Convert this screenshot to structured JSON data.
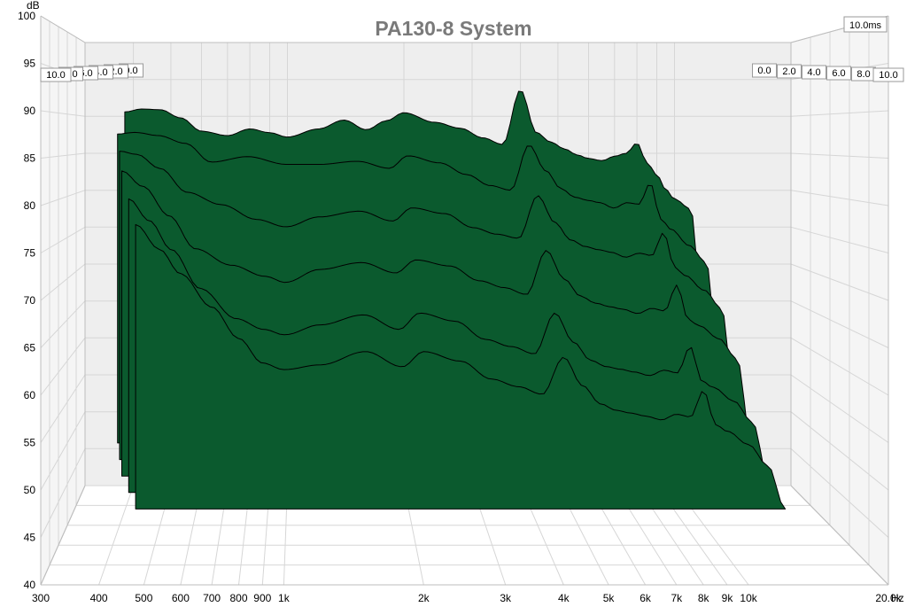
{
  "chart_data": {
    "type": "area",
    "title": "PA130-8 System",
    "xlabel": "Hz",
    "ylabel": "dB",
    "x_scale": "log",
    "xlim": [
      300,
      20000
    ],
    "ylim": [
      40,
      100
    ],
    "x_ticks": [
      {
        "value": 300,
        "label": "300"
      },
      {
        "value": 400,
        "label": "400"
      },
      {
        "value": 500,
        "label": "500"
      },
      {
        "value": 600,
        "label": "600"
      },
      {
        "value": 700,
        "label": "700"
      },
      {
        "value": 800,
        "label": "800"
      },
      {
        "value": 900,
        "label": "900"
      },
      {
        "value": 1000,
        "label": "1k"
      },
      {
        "value": 2000,
        "label": "2k"
      },
      {
        "value": 3000,
        "label": "3k"
      },
      {
        "value": 4000,
        "label": "4k"
      },
      {
        "value": 5000,
        "label": "5k"
      },
      {
        "value": 6000,
        "label": "6k"
      },
      {
        "value": 7000,
        "label": "7k"
      },
      {
        "value": 8000,
        "label": "8k"
      },
      {
        "value": 9000,
        "label": "9k"
      },
      {
        "value": 10000,
        "label": "10k"
      },
      {
        "value": 20000,
        "label": "20.0k"
      }
    ],
    "y_ticks": [
      40,
      45,
      50,
      55,
      60,
      65,
      70,
      75,
      80,
      85,
      90,
      95,
      100
    ],
    "time_axis_label": "10.0ms",
    "time_ticks": [
      "0.0",
      "2.0",
      "4.0",
      "6.0",
      "8.0",
      "10.0"
    ],
    "grid": true,
    "fill_color": "#0b5a2e",
    "line_color": "#000000",
    "series": [
      {
        "name": "0.0",
        "x": [
          380,
          420,
          470,
          530,
          600,
          700,
          800,
          900,
          1000,
          1200,
          1400,
          1600,
          1800,
          2000,
          2400,
          2800,
          3200,
          3600,
          4000,
          4400,
          4800,
          5200,
          5600,
          6000,
          6500,
          7000,
          7500,
          8000,
          8500,
          9000,
          9500,
          10000,
          11000,
          12000
        ],
        "y": [
          90.6,
          91.0,
          90.9,
          89.8,
          88.0,
          87.4,
          88.3,
          87.8,
          87.2,
          88.3,
          89.5,
          88.2,
          89.4,
          90.5,
          89.2,
          88.4,
          87.1,
          86.2,
          93.6,
          87.8,
          86.5,
          85.6,
          84.8,
          84.3,
          84.0,
          84.6,
          85.0,
          86.4,
          83.7,
          82.1,
          80.1,
          78.8,
          77.5,
          59.0
        ]
      },
      {
        "name": "2.0",
        "x": [
          380,
          420,
          480,
          560,
          650,
          800,
          1000,
          1200,
          1500,
          1800,
          2000,
          2400,
          2800,
          3200,
          3600,
          4000,
          4400,
          4800,
          5200,
          5600,
          6000,
          6500,
          7000,
          7500,
          8000,
          8500,
          9000,
          10000,
          11000,
          12000
        ],
        "y": [
          87.6,
          87.8,
          87.4,
          86.4,
          84.0,
          84.7,
          83.7,
          83.7,
          84.1,
          83.2,
          84.8,
          83.9,
          82.4,
          81.0,
          80.4,
          86.2,
          82.9,
          80.6,
          79.5,
          79.1,
          78.8,
          78.1,
          78.8,
          78.6,
          81.3,
          76.7,
          75.4,
          73.3,
          71.2,
          55.0
        ]
      },
      {
        "name": "4.0",
        "x": [
          400,
          440,
          500,
          580,
          700,
          850,
          1000,
          1200,
          1500,
          1800,
          2000,
          2400,
          2800,
          3200,
          3600,
          4000,
          4400,
          4800,
          5200,
          5600,
          6000,
          6500,
          7000,
          7500,
          8000,
          8500,
          9000,
          10000,
          11000,
          12000
        ],
        "y": [
          85.5,
          85.1,
          83.4,
          80.5,
          79.0,
          77.2,
          76.3,
          77.5,
          78.2,
          77.0,
          78.6,
          77.9,
          76.2,
          75.4,
          74.9,
          80.1,
          76.8,
          74.7,
          73.9,
          73.5,
          73.2,
          72.6,
          73.1,
          72.8,
          75.6,
          71.4,
          70.4,
          68.6,
          66.4,
          52.0
        ]
      },
      {
        "name": "6.0",
        "x": [
          420,
          470,
          540,
          620,
          750,
          900,
          1000,
          1200,
          1500,
          1800,
          2000,
          2400,
          2800,
          3200,
          3600,
          4000,
          4400,
          4800,
          5200,
          5600,
          6000,
          6500,
          7000,
          7500,
          8000,
          8500,
          9000,
          10000,
          11000,
          12000
        ],
        "y": [
          83.3,
          81.5,
          78.1,
          74.3,
          72.4,
          71.1,
          70.4,
          71.9,
          72.7,
          71.5,
          73.0,
          72.3,
          70.6,
          69.8,
          69.0,
          74.1,
          70.8,
          68.8,
          68.0,
          67.6,
          67.3,
          66.8,
          67.4,
          67.1,
          70.1,
          66.1,
          65.4,
          63.9,
          61.6,
          50.0
        ]
      },
      {
        "name": "8.0",
        "x": [
          450,
          500,
          560,
          650,
          780,
          900,
          1000,
          1200,
          1500,
          1800,
          2000,
          2400,
          2800,
          3200,
          3600,
          4000,
          4400,
          4800,
          5200,
          5600,
          6000,
          6500,
          7000,
          7500,
          8000,
          8500,
          9000,
          10000,
          11000,
          12000
        ],
        "y": [
          80.4,
          78.0,
          74.8,
          70.5,
          67.2,
          66.0,
          65.4,
          66.5,
          67.6,
          66.0,
          67.8,
          66.9,
          64.9,
          64.1,
          63.3,
          67.8,
          64.6,
          62.6,
          61.9,
          61.6,
          61.3,
          60.9,
          61.5,
          61.2,
          64.1,
          60.3,
          59.6,
          58.1,
          55.8,
          49.0
        ]
      },
      {
        "name": "10.0",
        "x": [
          480,
          540,
          600,
          700,
          800,
          900,
          1000,
          1200,
          1500,
          1800,
          2000,
          2400,
          2800,
          3200,
          3600,
          4000,
          4400,
          4800,
          5200,
          5600,
          6000,
          6500,
          7000,
          7500,
          8000,
          8500,
          9000,
          10000,
          11000,
          12000
        ],
        "y": [
          78.0,
          75.4,
          72.8,
          69.3,
          66.0,
          63.4,
          62.7,
          63.2,
          64.6,
          63.0,
          64.6,
          63.6,
          61.7,
          60.9,
          60.1,
          64.0,
          61.0,
          59.1,
          58.4,
          58.1,
          57.8,
          57.4,
          58.0,
          57.7,
          60.5,
          56.9,
          56.2,
          54.8,
          52.6,
          48.0
        ]
      }
    ]
  }
}
